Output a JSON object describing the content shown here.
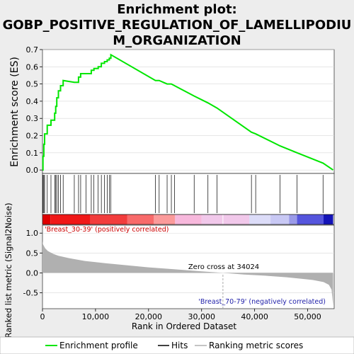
{
  "title_line1": "Enrichment plot:",
  "title_line2": "GOBP_POSITIVE_REGULATION_OF_LAMELLIPODIU",
  "title_line3": "M_ORGANIZATION",
  "colors": {
    "es_line": "#00e600",
    "hits": "#000000",
    "metric_fill": "#b0b0b0",
    "pos_label": "#cc0000",
    "neg_label": "#2222aa",
    "background": "#ededed",
    "panel": "#ffffff"
  },
  "chart_data": [
    {
      "type": "line",
      "name": "enrichment-profile",
      "ylabel": "Enrichment score (ES)",
      "xlim": [
        0,
        55000
      ],
      "ylim": [
        -0.02,
        0.7
      ],
      "yticks": [
        0.0,
        0.1,
        0.2,
        0.3,
        0.4,
        0.5,
        0.6,
        0.7
      ],
      "ytick_labels": [
        "0.0",
        "0.1",
        "0.2",
        "0.3",
        "0.4",
        "0.5",
        "0.6",
        "0.7"
      ],
      "grid": true,
      "peak_es": 0.67,
      "peak_rank": 12900,
      "hit_ranks": [
        100,
        250,
        400,
        900,
        1600,
        2300,
        2500,
        2700,
        3000,
        3400,
        3900,
        6000,
        6800,
        7200,
        8200,
        9200,
        9700,
        10500,
        11100,
        11700,
        12200,
        12600,
        12900,
        21300,
        22000,
        23500,
        24300,
        24900,
        28600,
        31200,
        32900,
        39400,
        40200,
        44800,
        48000,
        52900
      ],
      "es_values": [
        0.08,
        0.15,
        0.21,
        0.26,
        0.29,
        0.33,
        0.37,
        0.42,
        0.46,
        0.49,
        0.52,
        0.51,
        0.54,
        0.56,
        0.56,
        0.58,
        0.59,
        0.6,
        0.62,
        0.63,
        0.64,
        0.65,
        0.67,
        0.52,
        0.52,
        0.5,
        0.5,
        0.49,
        0.43,
        0.39,
        0.36,
        0.22,
        0.21,
        0.14,
        0.1,
        0.04
      ]
    },
    {
      "type": "area",
      "name": "ranked-list-metric",
      "xlabel": "Rank in Ordered Dataset",
      "ylabel": "Ranked list metric (Signal2Noise)",
      "xlim": [
        0,
        55000
      ],
      "ylim": [
        -0.9,
        1.2
      ],
      "xticks": [
        0,
        10000,
        20000,
        30000,
        40000,
        50000
      ],
      "xtick_labels": [
        "0",
        "10,000",
        "20,000",
        "30,000",
        "40,000",
        "50,000"
      ],
      "yticks": [
        -0.5,
        0.0,
        0.5,
        1.0
      ],
      "ytick_labels": [
        "-0.5",
        "0.0",
        "0.5",
        "1.0"
      ],
      "x": [
        0,
        100,
        500,
        1000,
        2000,
        3000,
        5000,
        8000,
        12000,
        16000,
        20000,
        25000,
        30000,
        34024,
        38000,
        42000,
        46000,
        49000,
        51000,
        53000,
        54000,
        54500,
        54800
      ],
      "values": [
        0.8,
        0.72,
        0.62,
        0.55,
        0.48,
        0.43,
        0.37,
        0.3,
        0.24,
        0.19,
        0.14,
        0.09,
        0.04,
        0.0,
        -0.04,
        -0.07,
        -0.11,
        -0.15,
        -0.18,
        -0.23,
        -0.3,
        -0.42,
        -0.82
      ],
      "zero_cross_label": "Zero cross at 34024",
      "pos_label": "'Breast_30-39' (positively correlated)",
      "neg_label": "'Breast_70-79' (negatively correlated)"
    }
  ],
  "legend": {
    "placement": "bottom",
    "items": [
      {
        "label": "Enrichment profile",
        "style": "green-line"
      },
      {
        "label": "Hits",
        "style": "black-line"
      },
      {
        "label": "Ranking metric scores",
        "style": "gray-line"
      }
    ]
  }
}
